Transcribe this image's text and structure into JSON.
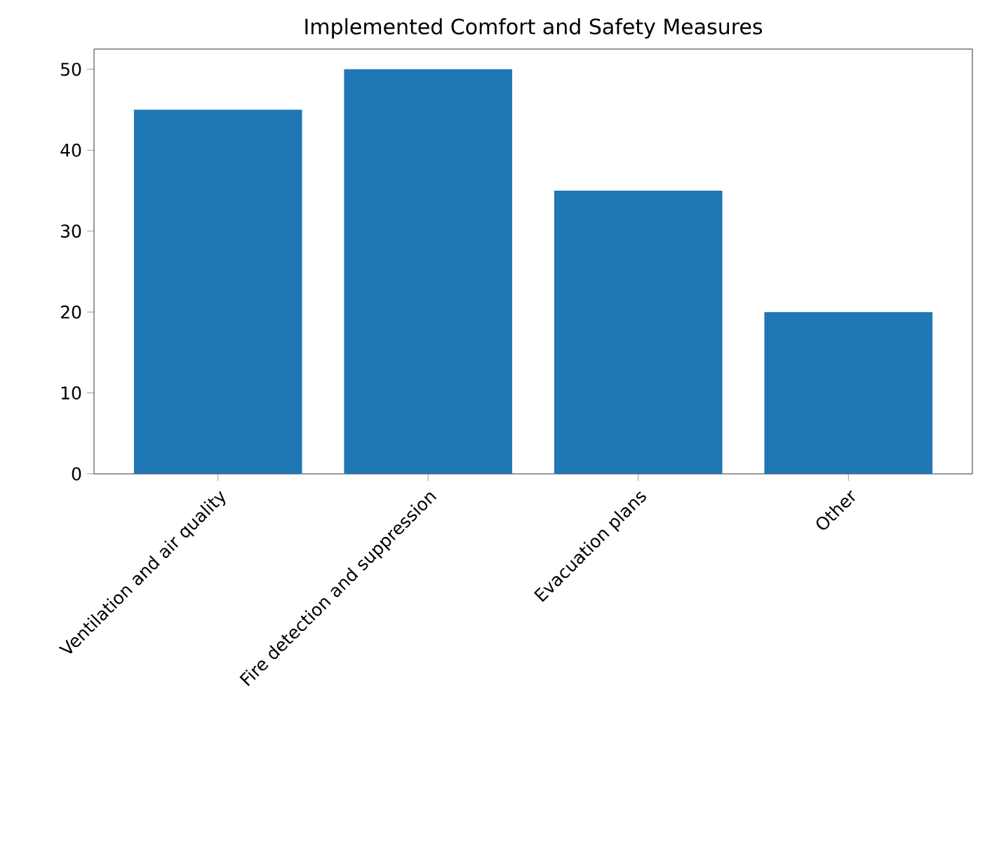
{
  "chart_data": {
    "type": "bar",
    "title": "Implemented Comfort and Safety Measures",
    "categories": [
      "Ventilation and air quality",
      "Fire detection and suppression",
      "Evacuation plans",
      "Other"
    ],
    "values": [
      45,
      50,
      35,
      20
    ],
    "color": "#1f77b4",
    "ylim": [
      0,
      52.5
    ],
    "yticks": [
      0,
      10,
      20,
      30,
      40,
      50
    ]
  }
}
